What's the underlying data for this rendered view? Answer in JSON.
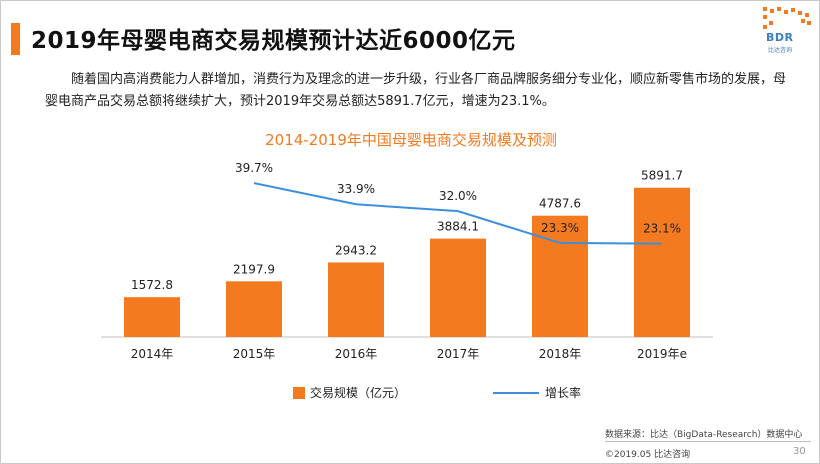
{
  "header": {
    "title": "2019年母婴电商交易规模预计达近6000亿元",
    "logo_text": "BDR",
    "logo_sub": "比达咨询"
  },
  "summary": "随着国内高消费能力人群增加，消费行为及理念的进一步升级，行业各厂商品牌服务细分专业化，顺应新零售市场的发展，母婴电商产品交易总额将继续扩大，预计2019年交易总额达5891.7亿元，增速为23.1%。",
  "colors": {
    "accent": "#f47a20",
    "line": "#3c8fde",
    "title": "#f47a20"
  },
  "chart_data": {
    "type": "bar",
    "title": "2014-2019年中国母婴电商交易规模及预测",
    "categories": [
      "2014年",
      "2015年",
      "2016年",
      "2017年",
      "2018年",
      "2019年e"
    ],
    "series": [
      {
        "name": "交易规模（亿元）",
        "type": "bar",
        "values": [
          1572.8,
          2197.9,
          2943.2,
          3884.1,
          4787.6,
          5891.7
        ],
        "labels": [
          "1572.8",
          "2197.9",
          "2943.2",
          "3884.1",
          "4787.6",
          "5891.7"
        ],
        "color": "#f47a20"
      },
      {
        "name": "增长率",
        "type": "line",
        "values": [
          null,
          39.7,
          33.9,
          32.0,
          23.3,
          23.1
        ],
        "labels": [
          "",
          "39.7%",
          "33.9%",
          "32.0%",
          "23.3%",
          "23.1%"
        ],
        "color": "#3c8fde"
      }
    ],
    "legend_position": "bottom",
    "grid": false
  },
  "footer": {
    "source": "数据来源：比达（BigData-Research）数据中心",
    "copyright": "©2019.05 比达咨询",
    "page": "30"
  }
}
